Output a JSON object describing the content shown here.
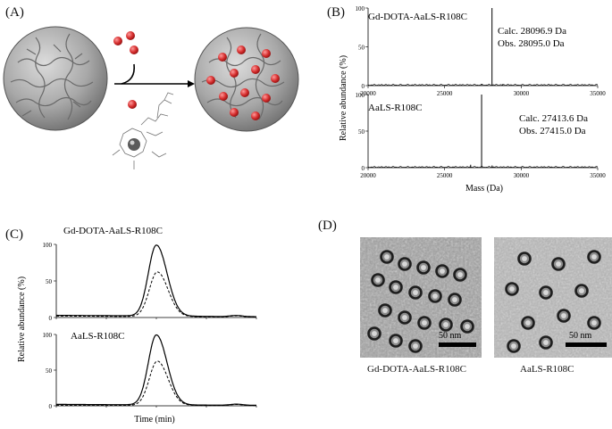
{
  "panels": {
    "a": {
      "letter": "(A)"
    },
    "b": {
      "letter": "(B)",
      "ylabel": "Relative abundance (%)",
      "xlabel": "Mass (Da)",
      "top": {
        "name": "Gd-DOTA-AaLS-R108C",
        "calc": "Calc. 28096.9 Da",
        "obs": "Obs. 28095.0 Da"
      },
      "bottom": {
        "name": "AaLS-R108C",
        "calc": "Calc. 27413.6 Da",
        "obs": "Obs. 27415.0 Da"
      }
    },
    "c": {
      "letter": "(C)",
      "ylabel": "Relative abundance (%)",
      "xlabel": "Time (min)",
      "top": {
        "name": "Gd-DOTA-AaLS-R108C"
      },
      "bottom": {
        "name": "AaLS-R108C"
      }
    },
    "d": {
      "letter": "(D)",
      "left": {
        "caption": "Gd-DOTA-AaLS-R108C",
        "scale": "50 nm"
      },
      "right": {
        "caption": "AaLS-R108C",
        "scale": "50 nm"
      }
    }
  },
  "chart_data": [
    {
      "type": "line",
      "panel": "B-top",
      "xlim": [
        20000,
        35000
      ],
      "ylim": [
        0,
        100
      ],
      "x_ticks": [
        "20000",
        "25000",
        "30000",
        "35000"
      ],
      "y_ticks": [
        "0",
        "50",
        "100"
      ],
      "peaks": [
        {
          "x": 28095,
          "y": 100
        },
        {
          "x": 27420,
          "y": 2
        },
        {
          "x": 28800,
          "y": 2
        }
      ]
    },
    {
      "type": "line",
      "panel": "B-bottom",
      "xlim": [
        20000,
        35000
      ],
      "ylim": [
        0,
        100
      ],
      "x_ticks": [
        "20000",
        "25000",
        "30000",
        "35000"
      ],
      "y_ticks": [
        "0",
        "50",
        "100"
      ],
      "peaks": [
        {
          "x": 27415,
          "y": 100
        },
        {
          "x": 26700,
          "y": 4
        },
        {
          "x": 28100,
          "y": 3
        }
      ]
    },
    {
      "type": "line",
      "panel": "C-top",
      "xlim": [
        0,
        60
      ],
      "ylim": [
        0,
        100
      ],
      "y_ticks": [
        "0",
        "50",
        "100"
      ],
      "series": [
        {
          "style": "solid",
          "peak_x": 30,
          "peak_y": 100,
          "baseline": 3
        },
        {
          "style": "dashed",
          "peak_x": 30.3,
          "peak_y": 63,
          "baseline": 2
        }
      ]
    },
    {
      "type": "line",
      "panel": "C-bottom",
      "xlim": [
        0,
        60
      ],
      "ylim": [
        0,
        100
      ],
      "y_ticks": [
        "0",
        "50",
        "100"
      ],
      "series": [
        {
          "style": "solid",
          "peak_x": 30,
          "peak_y": 100,
          "baseline": 2
        },
        {
          "style": "dashed",
          "peak_x": 30.3,
          "peak_y": 63,
          "baseline": 1
        }
      ]
    }
  ]
}
